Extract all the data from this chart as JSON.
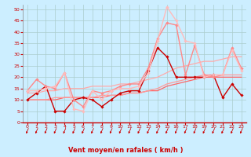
{
  "xlabel": "Vent moyen/en rafales ( km/h )",
  "bg_color": "#cceeff",
  "grid_color": "#aacccc",
  "x_ticks": [
    0,
    1,
    2,
    3,
    4,
    5,
    6,
    7,
    8,
    9,
    10,
    11,
    12,
    13,
    14,
    15,
    16,
    17,
    18,
    19,
    20,
    21,
    22,
    23
  ],
  "y_ticks": [
    0,
    5,
    10,
    15,
    20,
    25,
    30,
    35,
    40,
    45,
    50
  ],
  "ylim": [
    0,
    52
  ],
  "xlim": [
    -0.5,
    23.5
  ],
  "series": [
    {
      "x": [
        0,
        1,
        2,
        3,
        4,
        5,
        6,
        7,
        8,
        9,
        10,
        11,
        12,
        13,
        14,
        15,
        16,
        17,
        18,
        19,
        20,
        21,
        22,
        23
      ],
      "y": [
        10,
        13,
        16,
        5,
        5,
        10,
        11,
        10,
        7,
        10,
        13,
        14,
        14,
        23,
        33,
        29,
        20,
        20,
        20,
        20,
        21,
        11,
        17,
        12
      ],
      "color": "#cc0000",
      "lw": 1.0,
      "marker": "D",
      "ms": 1.8
    },
    {
      "x": [
        0,
        1,
        2,
        3,
        4,
        5,
        6,
        7,
        8,
        9,
        10,
        11,
        12,
        13,
        14,
        15,
        16,
        17,
        18,
        19,
        20,
        21,
        22,
        23
      ],
      "y": [
        14,
        19,
        16,
        15,
        22,
        10,
        7,
        14,
        13,
        14,
        16,
        17,
        17,
        24,
        37,
        44,
        43,
        21,
        34,
        21,
        20,
        21,
        33,
        24
      ],
      "color": "#ff8888",
      "lw": 1.0,
      "marker": "D",
      "ms": 1.8
    },
    {
      "x": [
        0,
        1,
        2,
        3,
        4,
        5,
        6,
        7,
        8,
        9,
        10,
        11,
        12,
        13,
        14,
        15,
        16,
        17,
        18,
        19,
        20,
        21,
        22,
        23
      ],
      "y": [
        14,
        14,
        15,
        16,
        22,
        6,
        5,
        14,
        10,
        14,
        15,
        15,
        16,
        22,
        36,
        51,
        45,
        36,
        35,
        20,
        21,
        21,
        32,
        23
      ],
      "color": "#ffbbbb",
      "lw": 1.0,
      "marker": "D",
      "ms": 1.8
    },
    {
      "x": [
        0,
        1,
        2,
        3,
        4,
        5,
        6,
        7,
        8,
        9,
        10,
        11,
        12,
        13,
        14,
        15,
        16,
        17,
        18,
        19,
        20,
        21,
        22,
        23
      ],
      "y": [
        10,
        10,
        10,
        10,
        11,
        11,
        11,
        11,
        11,
        12,
        12,
        13,
        13,
        14,
        14,
        16,
        17,
        18,
        19,
        20,
        20,
        20,
        20,
        20
      ],
      "color": "#ff6666",
      "lw": 0.9,
      "marker": null,
      "ms": 0
    },
    {
      "x": [
        0,
        1,
        2,
        3,
        4,
        5,
        6,
        7,
        8,
        9,
        10,
        11,
        12,
        13,
        14,
        15,
        16,
        17,
        18,
        19,
        20,
        21,
        22,
        23
      ],
      "y": [
        10,
        10,
        10,
        11,
        11,
        11,
        11,
        11,
        12,
        12,
        12,
        13,
        13,
        14,
        15,
        17,
        18,
        19,
        20,
        21,
        21,
        21,
        21,
        21
      ],
      "color": "#ff9999",
      "lw": 0.9,
      "marker": null,
      "ms": 0
    },
    {
      "x": [
        0,
        1,
        2,
        3,
        4,
        5,
        6,
        7,
        8,
        9,
        10,
        11,
        12,
        13,
        14,
        15,
        16,
        17,
        18,
        19,
        20,
        21,
        22,
        23
      ],
      "y": [
        13,
        13,
        14,
        14,
        15,
        15,
        15,
        16,
        16,
        16,
        17,
        17,
        18,
        19,
        20,
        22,
        24,
        25,
        26,
        27,
        27,
        28,
        29,
        29
      ],
      "color": "#ffaaaa",
      "lw": 0.9,
      "marker": null,
      "ms": 0
    }
  ],
  "arrow_color": "#cc0000",
  "axis_label_color": "#cc0000",
  "tick_color": "#cc0000",
  "spine_color": "#cc0000"
}
